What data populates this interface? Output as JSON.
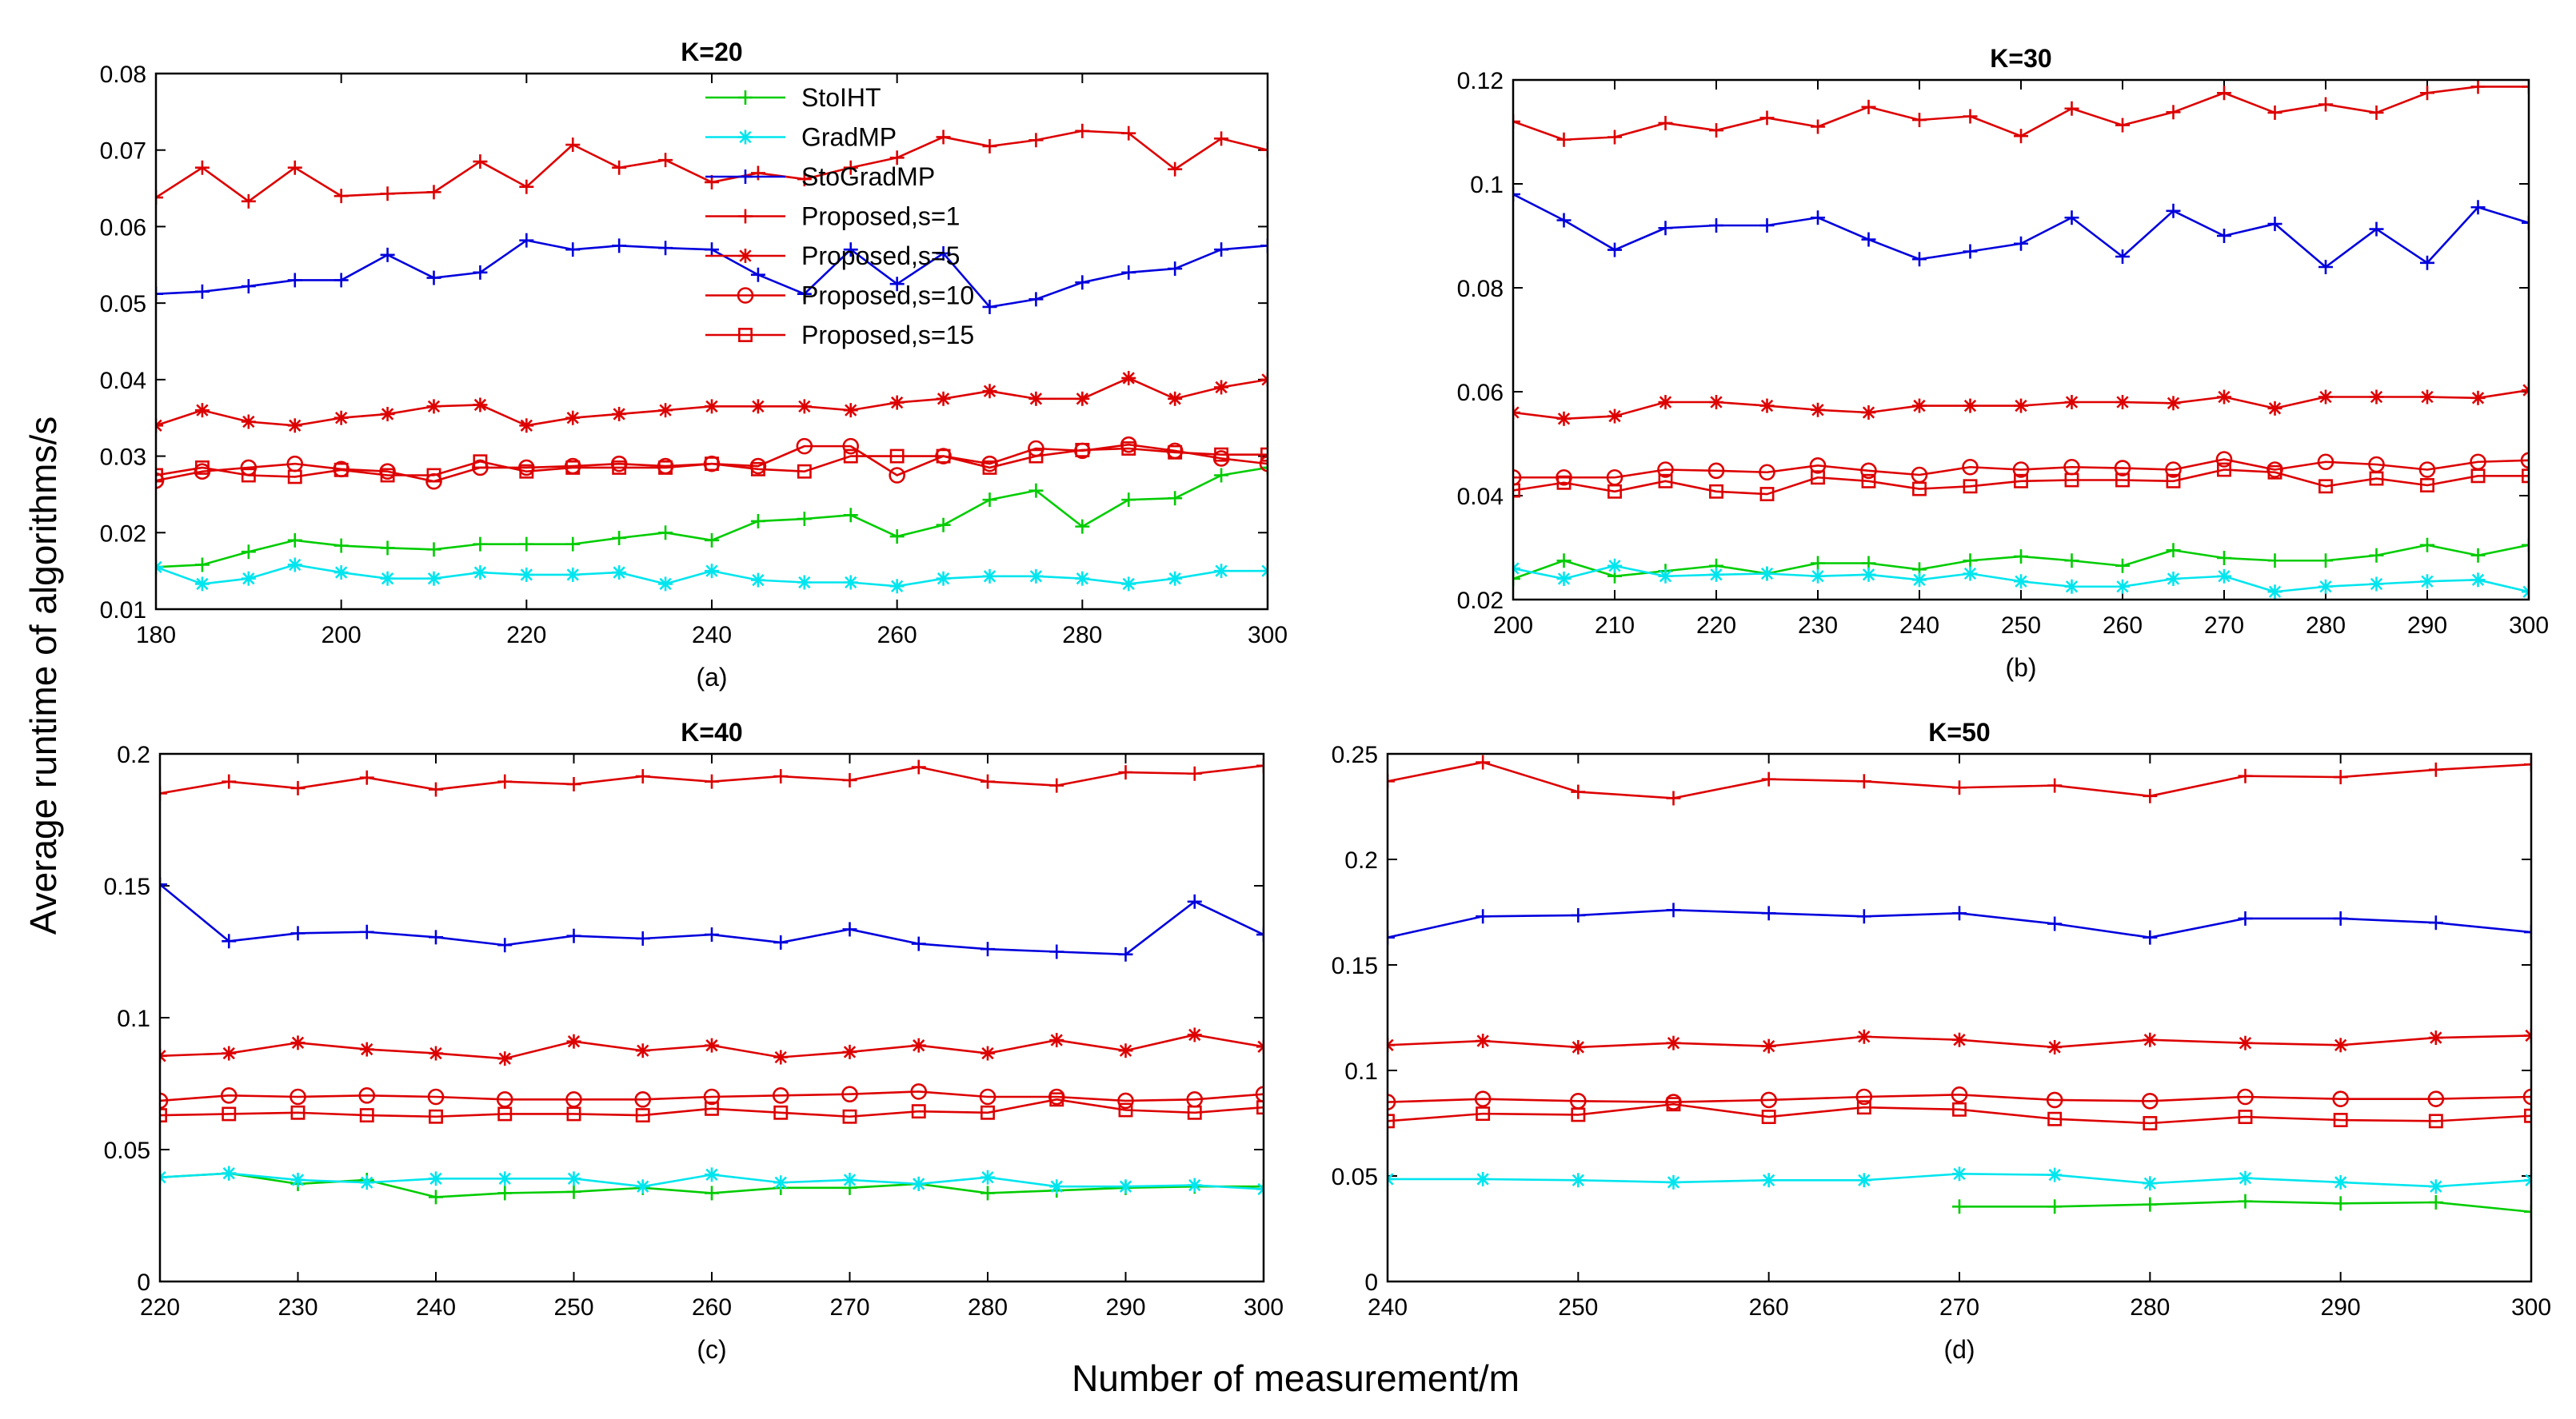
{
  "figure": {
    "ylabel": "Average runtime of algorithms/s",
    "xlabel": "Number of measurement/m"
  },
  "chart_data": [
    {
      "type": "line",
      "title": "K=20",
      "sublabel": "(a)",
      "xlim": [
        180,
        300
      ],
      "ylim": [
        0.01,
        0.08
      ],
      "xticks": [
        180,
        200,
        220,
        240,
        260,
        280,
        300
      ],
      "yticks": [
        0.01,
        0.02,
        0.03,
        0.04,
        0.05,
        0.06,
        0.07,
        0.08
      ],
      "ytick_labels": [
        "0.01",
        "0.02",
        "0.03",
        "0.04",
        "0.05",
        "0.06",
        "0.07",
        "0.08"
      ],
      "legend": {
        "position": "top-center",
        "entries": [
          "StoIHT",
          "GradMP",
          "StoGradMP",
          "Proposed,s=1",
          "Proposed,s=5",
          "Proposed,s=10",
          "Proposed,s=15"
        ]
      },
      "x": [
        180,
        185,
        190,
        195,
        200,
        205,
        210,
        215,
        220,
        225,
        230,
        235,
        240,
        245,
        250,
        255,
        260,
        265,
        270,
        275,
        280,
        285,
        290,
        295,
        300
      ],
      "series": [
        {
          "name": "StoIHT",
          "color": "#00cc00",
          "marker": "plus",
          "values": [
            0.0155,
            0.0158,
            0.0175,
            0.019,
            0.0183,
            0.018,
            0.0178,
            0.0185,
            0.0185,
            0.0185,
            0.0193,
            0.02,
            0.019,
            0.0215,
            0.0218,
            0.0223,
            0.0195,
            0.021,
            0.0243,
            0.0255,
            0.0208,
            0.0243,
            0.0245,
            0.0275,
            0.0285
          ]
        },
        {
          "name": "GradMP",
          "color": "#00e5ee",
          "marker": "asterisk",
          "values": [
            0.0155,
            0.0133,
            0.014,
            0.0158,
            0.0148,
            0.014,
            0.014,
            0.0148,
            0.0145,
            0.0145,
            0.0148,
            0.0133,
            0.015,
            0.0138,
            0.0135,
            0.0135,
            0.013,
            0.014,
            0.0143,
            0.0143,
            0.014,
            0.0133,
            0.014,
            0.015,
            0.015
          ]
        },
        {
          "name": "StoGradMP",
          "color": "#0000dd",
          "marker": "plus",
          "values": [
            0.0512,
            0.0515,
            0.0522,
            0.053,
            0.053,
            0.0563,
            0.0533,
            0.054,
            0.0582,
            0.057,
            0.0575,
            0.0572,
            0.057,
            0.0537,
            0.0512,
            0.057,
            0.0525,
            0.0565,
            0.0495,
            0.0505,
            0.0527,
            0.054,
            0.0545,
            0.057,
            0.0575
          ]
        },
        {
          "name": "Proposed,s=1",
          "color": "#dd0000",
          "marker": "plus",
          "values": [
            0.0638,
            0.0677,
            0.0633,
            0.0677,
            0.064,
            0.0643,
            0.0645,
            0.0685,
            0.0652,
            0.0707,
            0.0677,
            0.0687,
            0.0658,
            0.067,
            0.0662,
            0.0677,
            0.069,
            0.0717,
            0.0705,
            0.0713,
            0.0725,
            0.0722,
            0.0675,
            0.0715,
            0.07
          ]
        },
        {
          "name": "Proposed,s=5",
          "color": "#dd0000",
          "marker": "asterisk",
          "values": [
            0.034,
            0.036,
            0.0345,
            0.034,
            0.035,
            0.0355,
            0.0365,
            0.0367,
            0.034,
            0.035,
            0.0355,
            0.036,
            0.0365,
            0.0365,
            0.0365,
            0.036,
            0.037,
            0.0375,
            0.0385,
            0.0375,
            0.0375,
            0.0402,
            0.0375,
            0.039,
            0.04
          ]
        },
        {
          "name": "Proposed,s=10",
          "color": "#dd0000",
          "marker": "circle",
          "values": [
            0.0268,
            0.028,
            0.0285,
            0.029,
            0.0283,
            0.028,
            0.0267,
            0.0285,
            0.0285,
            0.0287,
            0.029,
            0.0287,
            0.029,
            0.0287,
            0.0313,
            0.0313,
            0.0275,
            0.03,
            0.029,
            0.031,
            0.0307,
            0.0315,
            0.0307,
            0.0297,
            0.029
          ]
        },
        {
          "name": "Proposed,s=15",
          "color": "#dd0000",
          "marker": "square",
          "values": [
            0.0275,
            0.0285,
            0.0275,
            0.0273,
            0.0282,
            0.0275,
            0.0275,
            0.0293,
            0.028,
            0.0285,
            0.0285,
            0.0285,
            0.029,
            0.0283,
            0.028,
            0.03,
            0.03,
            0.03,
            0.0285,
            0.03,
            0.0308,
            0.031,
            0.0305,
            0.0302,
            0.0302
          ]
        }
      ]
    },
    {
      "type": "line",
      "title": "K=30",
      "sublabel": "(b)",
      "xlim": [
        200,
        300
      ],
      "ylim": [
        0.02,
        0.12
      ],
      "xticks": [
        200,
        210,
        220,
        230,
        240,
        250,
        260,
        270,
        280,
        290,
        300
      ],
      "yticks": [
        0.02,
        0.04,
        0.06,
        0.08,
        0.1,
        0.12
      ],
      "ytick_labels": [
        "0.02",
        "0.04",
        "0.06",
        "0.08",
        "0.1",
        "0.12"
      ],
      "x": [
        200,
        205,
        210,
        215,
        220,
        225,
        230,
        235,
        240,
        245,
        250,
        255,
        260,
        265,
        270,
        275,
        280,
        285,
        290,
        295,
        300
      ],
      "series": [
        {
          "name": "StoIHT",
          "color": "#00cc00",
          "marker": "plus",
          "values": [
            0.024,
            0.0275,
            0.0245,
            0.0255,
            0.0265,
            0.025,
            0.027,
            0.027,
            0.0258,
            0.0275,
            0.0283,
            0.0275,
            0.0265,
            0.0295,
            0.028,
            0.0275,
            0.0275,
            0.0285,
            0.0305,
            0.0285,
            0.0305
          ]
        },
        {
          "name": "GradMP",
          "color": "#00e5ee",
          "marker": "asterisk",
          "values": [
            0.026,
            0.024,
            0.0265,
            0.0245,
            0.0248,
            0.025,
            0.0245,
            0.0248,
            0.0238,
            0.025,
            0.0235,
            0.0225,
            0.0225,
            0.024,
            0.0245,
            0.0215,
            0.0225,
            0.023,
            0.0235,
            0.0238,
            0.0215
          ]
        },
        {
          "name": "StoGradMP",
          "color": "#0000dd",
          "marker": "plus",
          "values": [
            0.098,
            0.093,
            0.0873,
            0.0915,
            0.092,
            0.092,
            0.0935,
            0.0893,
            0.0855,
            0.087,
            0.0885,
            0.0935,
            0.086,
            0.0948,
            0.09,
            0.0923,
            0.084,
            0.0913,
            0.0848,
            0.0955,
            0.0925
          ]
        },
        {
          "name": "Proposed,s=1",
          "color": "#dd0000",
          "marker": "plus",
          "values": [
            0.112,
            0.1085,
            0.109,
            0.1117,
            0.1103,
            0.1127,
            0.111,
            0.1148,
            0.1123,
            0.113,
            0.1092,
            0.1145,
            0.1113,
            0.1138,
            0.1175,
            0.1137,
            0.1153,
            0.1137,
            0.1175,
            0.1187,
            0.1187
          ]
        },
        {
          "name": "Proposed,s=5",
          "color": "#dd0000",
          "marker": "asterisk",
          "values": [
            0.056,
            0.0548,
            0.0553,
            0.058,
            0.058,
            0.0573,
            0.0565,
            0.056,
            0.0573,
            0.0573,
            0.0573,
            0.058,
            0.058,
            0.0578,
            0.059,
            0.0568,
            0.059,
            0.059,
            0.059,
            0.0588,
            0.0603
          ]
        },
        {
          "name": "Proposed,s=10",
          "color": "#dd0000",
          "marker": "circle",
          "values": [
            0.0435,
            0.0435,
            0.0435,
            0.045,
            0.0448,
            0.0445,
            0.0458,
            0.0448,
            0.044,
            0.0455,
            0.045,
            0.0455,
            0.0453,
            0.045,
            0.047,
            0.045,
            0.0465,
            0.046,
            0.045,
            0.0465,
            0.0468
          ]
        },
        {
          "name": "Proposed,s=15",
          "color": "#dd0000",
          "marker": "square",
          "values": [
            0.041,
            0.0425,
            0.0408,
            0.0428,
            0.0408,
            0.0403,
            0.0435,
            0.0428,
            0.0413,
            0.0418,
            0.0428,
            0.043,
            0.043,
            0.0428,
            0.045,
            0.0445,
            0.0418,
            0.0433,
            0.042,
            0.0438,
            0.0438
          ]
        }
      ]
    },
    {
      "type": "line",
      "title": "K=40",
      "sublabel": "(c)",
      "xlim": [
        220,
        300
      ],
      "ylim": [
        0,
        0.2
      ],
      "xticks": [
        220,
        230,
        240,
        250,
        260,
        270,
        280,
        290,
        300
      ],
      "yticks": [
        0,
        0.05,
        0.1,
        0.15,
        0.2
      ],
      "ytick_labels": [
        "0",
        "0.05",
        "0.1",
        "0.15",
        "0.2"
      ],
      "x": [
        220,
        225,
        230,
        235,
        240,
        245,
        250,
        255,
        260,
        265,
        270,
        275,
        280,
        285,
        290,
        295,
        300
      ],
      "series": [
        {
          "name": "StoIHT",
          "color": "#00cc00",
          "marker": "plus",
          "values": [
            0.0395,
            0.041,
            0.037,
            0.0385,
            0.032,
            0.0335,
            0.034,
            0.0355,
            0.0335,
            0.0355,
            0.0355,
            0.037,
            0.0335,
            0.0345,
            0.0355,
            0.036,
            0.036
          ]
        },
        {
          "name": "GradMP",
          "color": "#00e5ee",
          "marker": "asterisk",
          "values": [
            0.0395,
            0.041,
            0.0385,
            0.0375,
            0.039,
            0.039,
            0.039,
            0.036,
            0.0405,
            0.0375,
            0.0385,
            0.037,
            0.0395,
            0.036,
            0.036,
            0.0365,
            0.035
          ]
        },
        {
          "name": "StoGradMP",
          "color": "#0000dd",
          "marker": "plus",
          "values": [
            0.1505,
            0.129,
            0.132,
            0.1325,
            0.1305,
            0.1275,
            0.131,
            0.13,
            0.1315,
            0.1285,
            0.1335,
            0.128,
            0.126,
            0.125,
            0.124,
            0.144,
            0.1315
          ]
        },
        {
          "name": "Proposed,s=1",
          "color": "#dd0000",
          "marker": "plus",
          "values": [
            0.185,
            0.1895,
            0.187,
            0.191,
            0.1865,
            0.1895,
            0.1885,
            0.1915,
            0.1895,
            0.1915,
            0.19,
            0.195,
            0.1895,
            0.188,
            0.193,
            0.1925,
            0.1955
          ]
        },
        {
          "name": "Proposed,s=5",
          "color": "#dd0000",
          "marker": "asterisk",
          "values": [
            0.0855,
            0.0865,
            0.0905,
            0.088,
            0.0865,
            0.0845,
            0.091,
            0.0875,
            0.0895,
            0.085,
            0.087,
            0.0895,
            0.0865,
            0.0915,
            0.0875,
            0.0935,
            0.089
          ]
        },
        {
          "name": "Proposed,s=10",
          "color": "#dd0000",
          "marker": "circle",
          "values": [
            0.0685,
            0.0705,
            0.07,
            0.0705,
            0.07,
            0.069,
            0.069,
            0.069,
            0.07,
            0.0705,
            0.071,
            0.072,
            0.07,
            0.07,
            0.0685,
            0.069,
            0.071
          ]
        },
        {
          "name": "Proposed,s=15",
          "color": "#dd0000",
          "marker": "square",
          "values": [
            0.063,
            0.0635,
            0.064,
            0.063,
            0.0625,
            0.0635,
            0.0635,
            0.063,
            0.0655,
            0.064,
            0.0625,
            0.0645,
            0.064,
            0.069,
            0.065,
            0.064,
            0.066
          ]
        }
      ]
    },
    {
      "type": "line",
      "title": "K=50",
      "sublabel": "(d)",
      "xlim": [
        240,
        300
      ],
      "ylim": [
        0,
        0.25
      ],
      "xticks": [
        240,
        250,
        260,
        270,
        280,
        290,
        300
      ],
      "yticks": [
        0,
        0.05,
        0.1,
        0.15,
        0.2,
        0.25
      ],
      "ytick_labels": [
        "0",
        "0.05",
        "0.1",
        "0.15",
        "0.2",
        "0.25"
      ],
      "x": [
        240,
        245,
        250,
        255,
        260,
        265,
        270,
        275,
        280,
        285,
        290,
        295,
        300
      ],
      "series": [
        {
          "name": "StoIHT",
          "color": "#00cc00",
          "marker": "plus",
          "x": [
            270,
            275,
            280,
            285,
            290,
            295,
            300
          ],
          "values": [
            0.0355,
            0.0355,
            0.0365,
            0.038,
            0.037,
            0.0375,
            0.033
          ]
        },
        {
          "name": "GradMP",
          "color": "#00e5ee",
          "marker": "asterisk",
          "values": [
            0.0485,
            0.0485,
            0.048,
            0.047,
            0.048,
            0.048,
            0.051,
            0.0505,
            0.0465,
            0.049,
            0.047,
            0.045,
            0.048
          ]
        },
        {
          "name": "StoGradMP",
          "color": "#0000dd",
          "marker": "plus",
          "values": [
            0.163,
            0.173,
            0.1735,
            0.176,
            0.1745,
            0.173,
            0.1745,
            0.1695,
            0.163,
            0.172,
            0.172,
            0.17,
            0.1655
          ]
        },
        {
          "name": "Proposed,s=1",
          "color": "#dd0000",
          "marker": "plus",
          "values": [
            0.237,
            0.246,
            0.232,
            0.229,
            0.238,
            0.237,
            0.234,
            0.235,
            0.23,
            0.2395,
            0.239,
            0.2425,
            0.245
          ]
        },
        {
          "name": "Proposed,s=5",
          "color": "#dd0000",
          "marker": "asterisk",
          "values": [
            0.112,
            0.114,
            0.111,
            0.113,
            0.1115,
            0.116,
            0.1145,
            0.111,
            0.1145,
            0.113,
            0.112,
            0.1155,
            0.1165
          ]
        },
        {
          "name": "Proposed,s=10",
          "color": "#dd0000",
          "marker": "circle",
          "values": [
            0.085,
            0.0865,
            0.0855,
            0.085,
            0.086,
            0.0875,
            0.0885,
            0.086,
            0.0855,
            0.0875,
            0.0865,
            0.0865,
            0.0875
          ]
        },
        {
          "name": "Proposed,s=15",
          "color": "#dd0000",
          "marker": "square",
          "values": [
            0.076,
            0.0795,
            0.079,
            0.084,
            0.078,
            0.0825,
            0.0815,
            0.077,
            0.075,
            0.078,
            0.0765,
            0.076,
            0.0785
          ]
        }
      ]
    }
  ]
}
